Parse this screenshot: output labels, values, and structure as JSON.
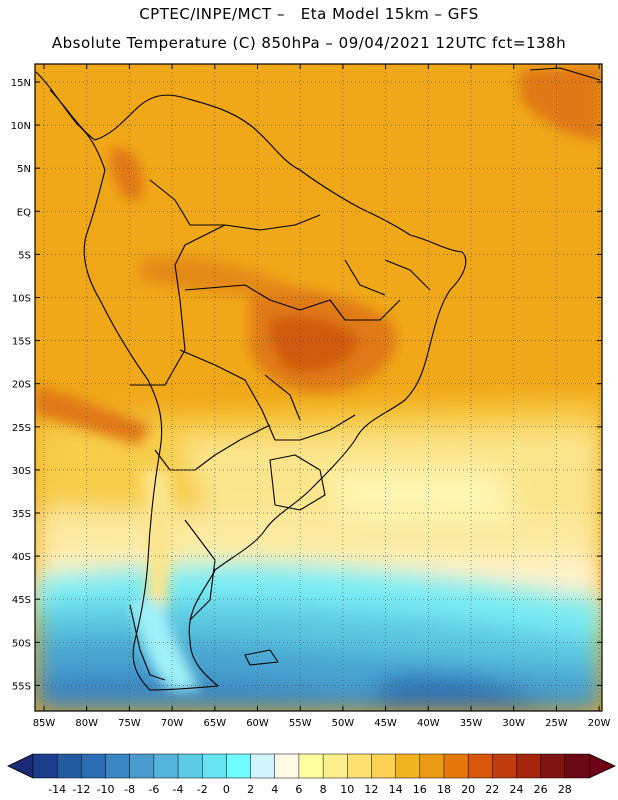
{
  "header": {
    "line1": "CPTEC/INPE/MCT –   Eta Model 15km – GFS",
    "line2": "Absolute Temperature (C) 850hPa – 09/04/2021 12UTC fct=138h"
  },
  "lat_labels": [
    "15N",
    "10N",
    "5N",
    "EQ",
    "5S",
    "10S",
    "15S",
    "20S",
    "25S",
    "30S",
    "35S",
    "40S",
    "45S",
    "50S",
    "55S"
  ],
  "lon_labels": [
    "85W",
    "80W",
    "75W",
    "70W",
    "65W",
    "60W",
    "55W",
    "50W",
    "45W",
    "40W",
    "35W",
    "30W",
    "25W",
    "20W"
  ],
  "colorbar": {
    "values": [
      "-14",
      "-12",
      "-10",
      "-8",
      "-6",
      "-4",
      "-2",
      "0",
      "2",
      "4",
      "6",
      "8",
      "10",
      "12",
      "14",
      "16",
      "18",
      "20",
      "22",
      "24",
      "26",
      "28"
    ],
    "colors": [
      "#1c3c8c",
      "#245aa0",
      "#2c6eb4",
      "#3a86c2",
      "#4a9cce",
      "#54b4da",
      "#5ccce6",
      "#66e4f0",
      "#6efcfc",
      "#cff4fc",
      "#fffae6",
      "#ffffa0",
      "#fcf08c",
      "#fce070",
      "#fcd050",
      "#f0b41e",
      "#ec9a14",
      "#e47808",
      "#d8560a",
      "#c03c0c",
      "#a4240c",
      "#801410",
      "#6a0814"
    ],
    "under_color": "#1c2a78",
    "over_color": "#6e0018"
  }
}
